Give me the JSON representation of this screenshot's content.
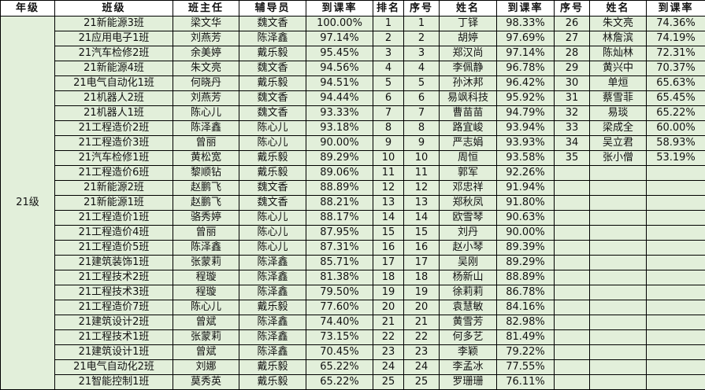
{
  "headers": [
    "年级",
    "班级",
    "班主任",
    "辅导员",
    "到课率",
    "排名",
    "序号",
    "姓名",
    "到课率",
    "序号",
    "姓名",
    "到课率"
  ],
  "grade": "21级",
  "classes": [
    [
      "21新能源3班",
      "梁文华",
      "魏文香",
      "100.00%",
      "1"
    ],
    [
      "21应用电子1班",
      "刘燕芳",
      "陈泽鑫",
      "97.14%",
      "2"
    ],
    [
      "21汽车检修2班",
      "余美婷",
      "戴乐毅",
      "95.45%",
      "3"
    ],
    [
      "21新能源4班",
      "朱文亮",
      "魏文香",
      "94.56%",
      "4"
    ],
    [
      "21电气自动化1班",
      "何晓丹",
      "戴乐毅",
      "94.51%",
      "5"
    ],
    [
      "21机器人2班",
      "刘燕芳",
      "魏文香",
      "94.44%",
      "6"
    ],
    [
      "21机器人1班",
      "陈心儿",
      "魏文香",
      "93.33%",
      "7"
    ],
    [
      "21工程造价2班",
      "陈泽鑫",
      "陈心儿",
      "93.18%",
      "8"
    ],
    [
      "21工程造价3班",
      "曾丽",
      "陈心儿",
      "90.00%",
      "9"
    ],
    [
      "21汽车检修1班",
      "黄松宽",
      "戴乐毅",
      "89.29%",
      "10"
    ],
    [
      "21工程造价6班",
      "黎顺钻",
      "戴乐毅",
      "89.06%",
      "11"
    ],
    [
      "21新能源2班",
      "赵鹏飞",
      "魏文香",
      "88.89%",
      "12"
    ],
    [
      "21新能源1班",
      "赵鹏飞",
      "魏文香",
      "88.21%",
      "13"
    ],
    [
      "21工程造价1班",
      "骆秀婷",
      "陈心儿",
      "88.17%",
      "14"
    ],
    [
      "21工程造价4班",
      "曾丽",
      "陈心儿",
      "87.95%",
      "15"
    ],
    [
      "21工程造价5班",
      "陈泽鑫",
      "陈心儿",
      "87.31%",
      "16"
    ],
    [
      "21建筑装饰1班",
      "张蒙莉",
      "陈泽鑫",
      "85.71%",
      "17"
    ],
    [
      "21工程技术2班",
      "程璇",
      "陈泽鑫",
      "81.38%",
      "18"
    ],
    [
      "21工程技术3班",
      "程璇",
      "陈泽鑫",
      "79.50%",
      "19"
    ],
    [
      "21工程造价7班",
      "陈心儿",
      "戴乐毅",
      "77.60%",
      "20"
    ],
    [
      "21建筑设计2班",
      "曾斌",
      "陈泽鑫",
      "74.40%",
      "21"
    ],
    [
      "21工程技术1班",
      "张蒙莉",
      "陈泽鑫",
      "73.15%",
      "22"
    ],
    [
      "21建筑设计1班",
      "曾斌",
      "陈泽鑫",
      "70.45%",
      "23"
    ],
    [
      "21电气自动化2班",
      "刘娜",
      "戴乐毅",
      "65.22%",
      "24"
    ],
    [
      "21智能控制1班",
      "莫秀英",
      "戴乐毅",
      "65.22%",
      "25"
    ]
  ],
  "students_left": [
    [
      "1",
      "丁铎",
      "98.33%"
    ],
    [
      "2",
      "胡婷",
      "97.69%"
    ],
    [
      "3",
      "郑汉尚",
      "97.14%"
    ],
    [
      "4",
      "李佩静",
      "96.78%"
    ],
    [
      "5",
      "孙沐邦",
      "96.42%"
    ],
    [
      "6",
      "易飒科技",
      "95.92%"
    ],
    [
      "7",
      "曹苗苗",
      "94.79%"
    ],
    [
      "8",
      "路宜峻",
      "93.94%"
    ],
    [
      "9",
      "严志娟",
      "93.93%"
    ],
    [
      "10",
      "周恒",
      "93.58%"
    ],
    [
      "11",
      "郭军",
      "92.26%"
    ],
    [
      "12",
      "邓忠祥",
      "91.94%"
    ],
    [
      "13",
      "郑秋凤",
      "91.80%"
    ],
    [
      "14",
      "欧雪琴",
      "90.63%"
    ],
    [
      "15",
      "刘丹",
      "90.00%"
    ],
    [
      "16",
      "赵小琴",
      "89.39%"
    ],
    [
      "17",
      "吴刚",
      "89.29%"
    ],
    [
      "18",
      "杨新山",
      "88.89%"
    ],
    [
      "19",
      "徐莉莉",
      "86.78%"
    ],
    [
      "20",
      "袁慧敏",
      "84.16%"
    ],
    [
      "21",
      "黄雪芳",
      "82.98%"
    ],
    [
      "22",
      "何多艺",
      "81.49%"
    ],
    [
      "23",
      "李颖",
      "79.22%"
    ],
    [
      "24",
      "李孟冰",
      "77.55%"
    ],
    [
      "25",
      "罗珊珊",
      "76.11%"
    ]
  ],
  "students_right": [
    [
      "26",
      "朱文亮",
      "74.36%"
    ],
    [
      "27",
      "林詹滨",
      "74.19%"
    ],
    [
      "28",
      "陈灿林",
      "72.31%"
    ],
    [
      "29",
      "黄兴中",
      "70.37%"
    ],
    [
      "30",
      "单烜",
      "65.63%"
    ],
    [
      "31",
      "蔡雪菲",
      "65.45%"
    ],
    [
      "32",
      "易琰",
      "65.22%"
    ],
    [
      "33",
      "梁成全",
      "60.00%"
    ],
    [
      "34",
      "吴立君",
      "58.93%"
    ],
    [
      "35",
      "张小僧",
      "53.19%"
    ]
  ],
  "colors": {
    "body_fill": "#e2efda",
    "header_fill": "#ffffff",
    "grid": "#000000"
  }
}
